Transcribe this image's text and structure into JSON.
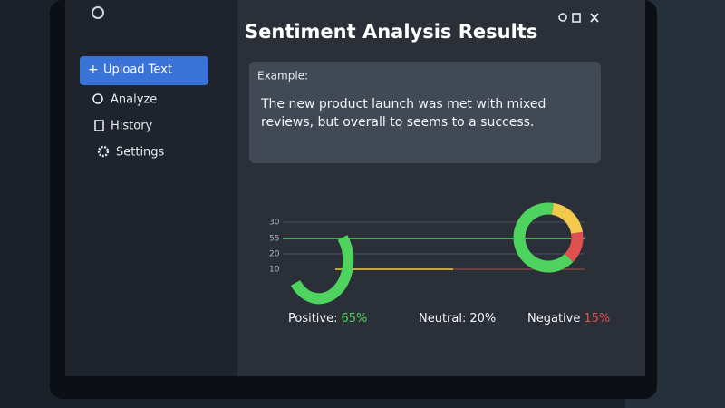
{
  "app": {
    "title": "Sentiment Analysis Results",
    "nav": [
      "Upload Text",
      "Analyze",
      "History",
      "Settings"
    ],
    "example": {
      "heading": "Example:",
      "text": "The new product launch was met with mixed reviews, but overall to seems to a success."
    },
    "axis_labels": [
      "30",
      "55",
      "20",
      "10"
    ],
    "results": {
      "labels": [
        "Positive:",
        "Neutral:",
        "Negative"
      ],
      "values": [
        65,
        20,
        15
      ],
      "value_labels": [
        "65%",
        "20%",
        "15%"
      ],
      "colors": [
        "#4fd35f",
        "#f2c94c",
        "#e0504e"
      ]
    }
  }
}
